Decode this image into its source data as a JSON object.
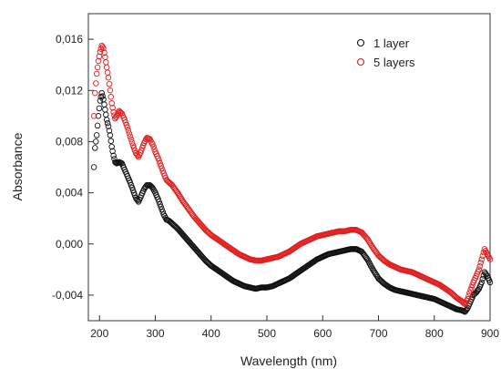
{
  "chart_data": {
    "type": "scatter",
    "xlabel": "Wavelength (nm)",
    "ylabel": "Absorbance",
    "xlim": [
      180,
      900
    ],
    "ylim": [
      -0.006,
      0.018
    ],
    "x_ticks": [
      200,
      300,
      400,
      500,
      600,
      700,
      800,
      900
    ],
    "x_tick_labels": [
      "200",
      "300",
      "400",
      "500",
      "600",
      "700",
      "800",
      "900"
    ],
    "y_ticks": [
      -0.004,
      0.0,
      0.004,
      0.008,
      0.012,
      0.016
    ],
    "y_tick_labels": [
      "-0,004",
      "0,000",
      "0,004",
      "0,008",
      "0,012",
      "0,016"
    ],
    "grid": false,
    "legend_position": "top-right",
    "marker": "open-circle",
    "series": [
      {
        "name": "1 layer",
        "color": "#111111",
        "points": [
          [
            190,
            0.006
          ],
          [
            192,
            0.0075
          ],
          [
            195,
            0.0085
          ],
          [
            198,
            0.01
          ],
          [
            201,
            0.0112
          ],
          [
            204,
            0.0118
          ],
          [
            207,
            0.0113
          ],
          [
            210,
            0.0105
          ],
          [
            213,
            0.0097
          ],
          [
            216,
            0.0092
          ],
          [
            219,
            0.0085
          ],
          [
            222,
            0.0076
          ],
          [
            225,
            0.0069
          ],
          [
            228,
            0.0064
          ],
          [
            231,
            0.0063
          ],
          [
            235,
            0.0064
          ],
          [
            240,
            0.0063
          ],
          [
            245,
            0.0058
          ],
          [
            250,
            0.0053
          ],
          [
            255,
            0.0048
          ],
          [
            260,
            0.0042
          ],
          [
            265,
            0.0036
          ],
          [
            270,
            0.0033
          ],
          [
            275,
            0.0038
          ],
          [
            280,
            0.0043
          ],
          [
            285,
            0.0046
          ],
          [
            290,
            0.0046
          ],
          [
            295,
            0.0044
          ],
          [
            300,
            0.004
          ],
          [
            305,
            0.0035
          ],
          [
            310,
            0.0029
          ],
          [
            315,
            0.0023
          ],
          [
            320,
            0.0019
          ],
          [
            325,
            0.0018
          ],
          [
            330,
            0.0016
          ],
          [
            340,
            0.0012
          ],
          [
            350,
            0.0007
          ],
          [
            360,
            0.0002
          ],
          [
            370,
            -0.0003
          ],
          [
            380,
            -0.0008
          ],
          [
            390,
            -0.0013
          ],
          [
            400,
            -0.0017
          ],
          [
            410,
            -0.002
          ],
          [
            420,
            -0.0023
          ],
          [
            430,
            -0.0026
          ],
          [
            440,
            -0.0029
          ],
          [
            450,
            -0.0031
          ],
          [
            460,
            -0.0033
          ],
          [
            470,
            -0.0034
          ],
          [
            480,
            -0.0035
          ],
          [
            490,
            -0.0034
          ],
          [
            500,
            -0.0034
          ],
          [
            510,
            -0.0033
          ],
          [
            520,
            -0.0031
          ],
          [
            530,
            -0.0029
          ],
          [
            540,
            -0.0027
          ],
          [
            550,
            -0.0024
          ],
          [
            560,
            -0.0021
          ],
          [
            570,
            -0.0018
          ],
          [
            580,
            -0.0015
          ],
          [
            590,
            -0.0012
          ],
          [
            600,
            -0.001
          ],
          [
            610,
            -0.0008
          ],
          [
            620,
            -0.0007
          ],
          [
            630,
            -0.0006
          ],
          [
            640,
            -0.0005
          ],
          [
            650,
            -0.0004
          ],
          [
            660,
            -0.0004
          ],
          [
            670,
            -0.0006
          ],
          [
            680,
            -0.0012
          ],
          [
            690,
            -0.002
          ],
          [
            700,
            -0.0027
          ],
          [
            710,
            -0.0031
          ],
          [
            720,
            -0.0034
          ],
          [
            730,
            -0.0036
          ],
          [
            740,
            -0.0037
          ],
          [
            750,
            -0.0038
          ],
          [
            760,
            -0.0039
          ],
          [
            770,
            -0.004
          ],
          [
            780,
            -0.0041
          ],
          [
            790,
            -0.0042
          ],
          [
            800,
            -0.0043
          ],
          [
            810,
            -0.0045
          ],
          [
            820,
            -0.0047
          ],
          [
            830,
            -0.0049
          ],
          [
            840,
            -0.0051
          ],
          [
            850,
            -0.0052
          ],
          [
            855,
            -0.0053
          ],
          [
            860,
            -0.005
          ],
          [
            865,
            -0.0045
          ],
          [
            870,
            -0.004
          ],
          [
            875,
            -0.0038
          ],
          [
            880,
            -0.0035
          ],
          [
            885,
            -0.003
          ],
          [
            890,
            -0.0022
          ],
          [
            895,
            -0.0025
          ],
          [
            900,
            -0.003
          ]
        ]
      },
      {
        "name": "5 layers",
        "color": "#e02020",
        "points": [
          [
            190,
            0.01
          ],
          [
            192,
            0.0118
          ],
          [
            195,
            0.0133
          ],
          [
            198,
            0.0143
          ],
          [
            201,
            0.015
          ],
          [
            204,
            0.0155
          ],
          [
            207,
            0.0153
          ],
          [
            210,
            0.0146
          ],
          [
            213,
            0.0138
          ],
          [
            216,
            0.013
          ],
          [
            219,
            0.012
          ],
          [
            222,
            0.011
          ],
          [
            225,
            0.0103
          ],
          [
            228,
            0.0098
          ],
          [
            231,
            0.01
          ],
          [
            235,
            0.0104
          ],
          [
            240,
            0.0102
          ],
          [
            245,
            0.0097
          ],
          [
            250,
            0.0091
          ],
          [
            255,
            0.0084
          ],
          [
            260,
            0.0077
          ],
          [
            265,
            0.0071
          ],
          [
            270,
            0.0068
          ],
          [
            275,
            0.0073
          ],
          [
            280,
            0.0079
          ],
          [
            285,
            0.0083
          ],
          [
            290,
            0.0082
          ],
          [
            295,
            0.0078
          ],
          [
            300,
            0.0072
          ],
          [
            305,
            0.0067
          ],
          [
            310,
            0.0061
          ],
          [
            315,
            0.0055
          ],
          [
            320,
            0.005
          ],
          [
            325,
            0.0048
          ],
          [
            330,
            0.0046
          ],
          [
            340,
            0.004
          ],
          [
            350,
            0.0033
          ],
          [
            360,
            0.0027
          ],
          [
            370,
            0.0021
          ],
          [
            380,
            0.0016
          ],
          [
            390,
            0.0011
          ],
          [
            400,
            0.0007
          ],
          [
            410,
            0.0004
          ],
          [
            420,
            0.0001
          ],
          [
            430,
            -0.0002
          ],
          [
            440,
            -0.0005
          ],
          [
            450,
            -0.0008
          ],
          [
            460,
            -0.001
          ],
          [
            470,
            -0.0012
          ],
          [
            480,
            -0.0013
          ],
          [
            490,
            -0.0013
          ],
          [
            500,
            -0.0012
          ],
          [
            510,
            -0.0011
          ],
          [
            520,
            -0.001
          ],
          [
            530,
            -0.0008
          ],
          [
            540,
            -0.0006
          ],
          [
            550,
            -0.0003
          ],
          [
            560,
            0.0
          ],
          [
            570,
            0.0002
          ],
          [
            580,
            0.0004
          ],
          [
            590,
            0.0006
          ],
          [
            600,
            0.0007
          ],
          [
            610,
            0.0008
          ],
          [
            620,
            0.0009
          ],
          [
            630,
            0.001
          ],
          [
            640,
            0.001
          ],
          [
            650,
            0.0011
          ],
          [
            660,
            0.0011
          ],
          [
            670,
            0.0009
          ],
          [
            680,
            0.0004
          ],
          [
            690,
            -0.0003
          ],
          [
            700,
            -0.0009
          ],
          [
            710,
            -0.0013
          ],
          [
            720,
            -0.0016
          ],
          [
            730,
            -0.0018
          ],
          [
            740,
            -0.002
          ],
          [
            750,
            -0.0021
          ],
          [
            760,
            -0.0022
          ],
          [
            770,
            -0.0024
          ],
          [
            780,
            -0.0026
          ],
          [
            790,
            -0.0028
          ],
          [
            800,
            -0.003
          ],
          [
            810,
            -0.0032
          ],
          [
            820,
            -0.0035
          ],
          [
            830,
            -0.0038
          ],
          [
            840,
            -0.0042
          ],
          [
            850,
            -0.0045
          ],
          [
            855,
            -0.0047
          ],
          [
            860,
            -0.0043
          ],
          [
            865,
            -0.0036
          ],
          [
            870,
            -0.003
          ],
          [
            875,
            -0.0025
          ],
          [
            880,
            -0.002
          ],
          [
            885,
            -0.0012
          ],
          [
            890,
            -0.0004
          ],
          [
            895,
            -0.0008
          ],
          [
            900,
            -0.0012
          ]
        ]
      }
    ]
  }
}
